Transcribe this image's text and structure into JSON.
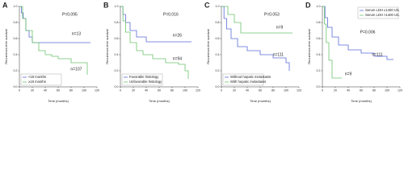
{
  "chart_data": [
    {
      "type": "line",
      "step": true,
      "panel_label": "A",
      "ylabel": "Recurrence-free survival",
      "xlabel": "Time (months)",
      "xlim": [
        0,
        120
      ],
      "xticks": [
        0,
        20,
        40,
        60,
        80,
        100,
        120
      ],
      "ylim": [
        0,
        1
      ],
      "yticks": [
        {
          "value": 0,
          "label": "0.0"
        },
        0.2,
        0.4,
        0.6,
        0.8,
        {
          "value": 1,
          "label": "1.0"
        }
      ],
      "legend_loc": "lower left",
      "annotations": [
        {
          "text": "P=0.095",
          "x": 78,
          "y": 0.9
        },
        {
          "text": "n=13",
          "x": 88,
          "y": 0.66
        },
        {
          "text": "n=107",
          "x": 88,
          "y": 0.22
        }
      ],
      "series": [
        {
          "name": "<18 months",
          "color": "#5b6bd8",
          "x": [
            0,
            3,
            6,
            10,
            15,
            20,
            110
          ],
          "values": [
            1,
            0.92,
            0.85,
            0.7,
            0.62,
            0.55,
            0.55
          ]
        },
        {
          "name": "≥18 months",
          "color": "#6cc36c",
          "x": [
            0,
            5,
            10,
            20,
            30,
            40,
            50,
            60,
            80,
            95,
            105
          ],
          "values": [
            1,
            0.85,
            0.7,
            0.55,
            0.45,
            0.4,
            0.38,
            0.35,
            0.3,
            0.3,
            0.15
          ]
        }
      ]
    },
    {
      "type": "line",
      "step": true,
      "panel_label": "B",
      "ylabel": "Recurrence-free survival",
      "xlabel": "Time (months)",
      "xlim": [
        0,
        120
      ],
      "xticks": [
        0,
        20,
        40,
        60,
        80,
        100,
        120
      ],
      "ylim": [
        0,
        1
      ],
      "yticks": [
        {
          "value": 0,
          "label": "0.0"
        },
        0.2,
        0.4,
        0.6,
        0.8,
        {
          "value": 1,
          "label": "1.0"
        }
      ],
      "legend_loc": "lower left",
      "annotations": [
        {
          "text": "P=0.016",
          "x": 78,
          "y": 0.9
        },
        {
          "text": "n=26",
          "x": 88,
          "y": 0.64
        },
        {
          "text": "n=94",
          "x": 88,
          "y": 0.35
        }
      ],
      "series": [
        {
          "name": "Favorable histology",
          "color": "#5b6bd8",
          "x": [
            0,
            4,
            8,
            15,
            25,
            40,
            110
          ],
          "values": [
            1,
            0.9,
            0.8,
            0.7,
            0.62,
            0.56,
            0.56
          ]
        },
        {
          "name": "Unfavorable histology",
          "color": "#6cc36c",
          "x": [
            0,
            4,
            8,
            15,
            25,
            35,
            50,
            70,
            90,
            100,
            105
          ],
          "values": [
            1,
            0.82,
            0.68,
            0.55,
            0.45,
            0.4,
            0.35,
            0.3,
            0.28,
            0.2,
            0.1
          ]
        }
      ]
    },
    {
      "type": "line",
      "step": true,
      "panel_label": "C",
      "ylabel": "Recurrence-free survival",
      "xlabel": "Time (months)",
      "xlim": [
        0,
        120
      ],
      "xticks": [
        0,
        20,
        40,
        60,
        80,
        100,
        120
      ],
      "ylim": [
        0,
        1
      ],
      "yticks": [
        {
          "value": 0,
          "label": "0.0"
        },
        0.2,
        0.4,
        0.6,
        0.8,
        {
          "value": 1,
          "label": "1.0"
        }
      ],
      "legend_loc": "lower left",
      "annotations": [
        {
          "text": "P=0.053",
          "x": 78,
          "y": 0.9
        },
        {
          "text": "n=9",
          "x": 90,
          "y": 0.74
        },
        {
          "text": "n=111",
          "x": 88,
          "y": 0.4
        }
      ],
      "series": [
        {
          "name": "Without hepatic metastasis",
          "color": "#5b6bd8",
          "x": [
            0,
            4,
            8,
            15,
            25,
            40,
            60,
            80,
            100,
            105
          ],
          "values": [
            1,
            0.85,
            0.72,
            0.6,
            0.5,
            0.45,
            0.4,
            0.36,
            0.3,
            0.2
          ]
        },
        {
          "name": "With hepatic metastasis",
          "color": "#6cc36c",
          "x": [
            0,
            10,
            20,
            30,
            110
          ],
          "values": [
            1,
            0.9,
            0.8,
            0.67,
            0.67
          ]
        }
      ]
    },
    {
      "type": "line",
      "step": true,
      "panel_label": "D",
      "ylabel": "Recurrence-free survival",
      "xlabel": "Time (months)",
      "xlim": [
        0,
        120
      ],
      "xticks": [
        0,
        20,
        40,
        60,
        80,
        100,
        120
      ],
      "ylim": [
        0,
        1
      ],
      "yticks": [
        {
          "value": 0,
          "label": "0.0"
        },
        0.2,
        0.4,
        0.6,
        0.8,
        {
          "value": 1,
          "label": "1.0"
        }
      ],
      "legend_loc": "upper right",
      "annotations": [
        {
          "text": "P=0.006",
          "x": 70,
          "y": 0.68
        },
        {
          "text": "n=111",
          "x": 85,
          "y": 0.4
        },
        {
          "text": "n=9",
          "x": 40,
          "y": 0.16
        }
      ],
      "series": [
        {
          "name": "Serum LDH ≤1400 U/L",
          "color": "#5b6bd8",
          "x": [
            0,
            4,
            8,
            15,
            25,
            40,
            60,
            80,
            100,
            110
          ],
          "values": [
            1,
            0.86,
            0.74,
            0.62,
            0.52,
            0.46,
            0.42,
            0.38,
            0.34,
            0.34
          ]
        },
        {
          "name": "Serum LDH >1400 U/L",
          "color": "#6cc36c",
          "x": [
            0,
            3,
            6,
            10,
            15,
            30
          ],
          "values": [
            1,
            0.78,
            0.55,
            0.33,
            0.11,
            0.11
          ]
        }
      ]
    }
  ]
}
